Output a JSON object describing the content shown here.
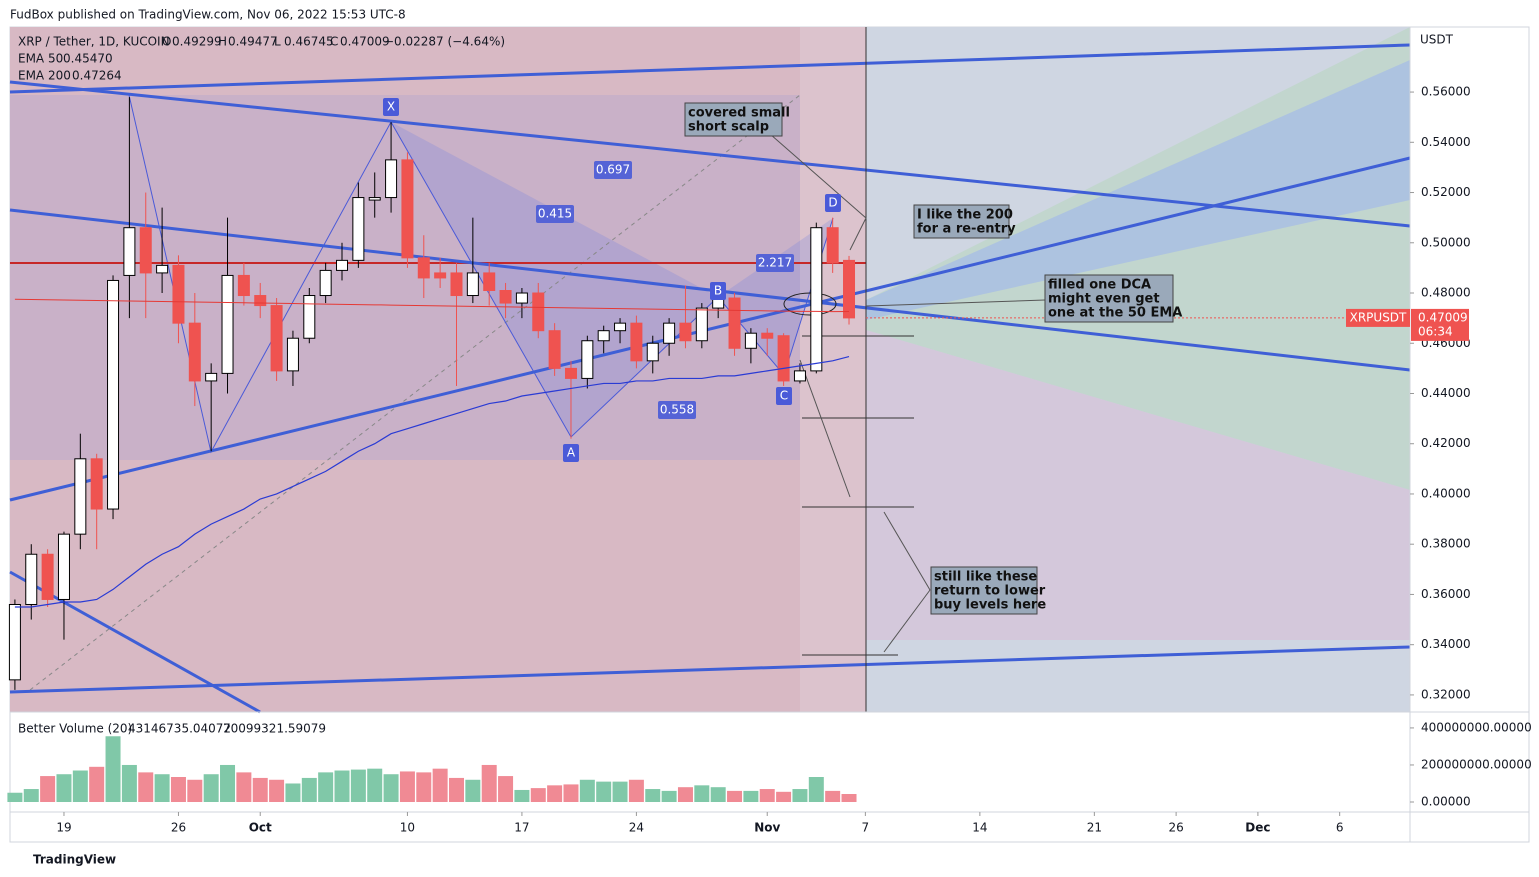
{
  "header": {
    "publisher": "FudBox published on TradingView.com, Nov 06, 2022 15:53 UTC-8",
    "footer": "TradingView"
  },
  "chart_data": {
    "type": "candlestick",
    "title": "XRP / Tether, 1D, KUCOIN",
    "ohlc_labels": [
      "O",
      "H",
      "L",
      "C"
    ],
    "change": "−0.02287 (−4.64%)",
    "currency": "USDT",
    "symbol": "XRPUSDT",
    "countdown": "06:34",
    "x": [
      0,
      1,
      2,
      3,
      4,
      5,
      6,
      7,
      8,
      9,
      10,
      11,
      12,
      13,
      14,
      15,
      16,
      17,
      18,
      19,
      20,
      21,
      22,
      23,
      24,
      25,
      26,
      27,
      28,
      29,
      30,
      31,
      32,
      33,
      34,
      35,
      36,
      37,
      38,
      39,
      40,
      41,
      42,
      43,
      44,
      45,
      46,
      47,
      48,
      49,
      50,
      51
    ],
    "open": [
      0.326,
      0.356,
      0.376,
      0.358,
      0.384,
      0.414,
      0.394,
      0.487,
      0.506,
      0.488,
      0.491,
      0.468,
      0.445,
      0.448,
      0.487,
      0.479,
      0.475,
      0.449,
      0.462,
      0.479,
      0.489,
      0.493,
      0.517,
      0.518,
      0.533,
      0.494,
      0.488,
      0.488,
      0.479,
      0.488,
      0.481,
      0.476,
      0.48,
      0.465,
      0.45,
      0.446,
      0.461,
      0.465,
      0.468,
      0.453,
      0.46,
      0.468,
      0.461,
      0.474,
      0.478,
      0.458,
      0.464,
      0.463,
      0.445,
      0.449,
      0.506,
      0.49299
    ],
    "high": [
      0.358,
      0.38,
      0.378,
      0.385,
      0.424,
      0.416,
      0.487,
      0.558,
      0.52,
      0.514,
      0.495,
      0.48,
      0.452,
      0.51,
      0.492,
      0.484,
      0.478,
      0.465,
      0.482,
      0.492,
      0.5,
      0.524,
      0.528,
      0.548,
      0.536,
      0.503,
      0.494,
      0.492,
      0.51,
      0.492,
      0.484,
      0.482,
      0.484,
      0.468,
      0.453,
      0.463,
      0.467,
      0.47,
      0.471,
      0.463,
      0.47,
      0.483,
      0.476,
      0.483,
      0.48,
      0.466,
      0.466,
      0.464,
      0.452,
      0.508,
      0.51,
      0.49477
    ],
    "low": [
      0.322,
      0.35,
      0.355,
      0.342,
      0.378,
      0.378,
      0.39,
      0.47,
      0.47,
      0.48,
      0.46,
      0.435,
      0.417,
      0.44,
      0.475,
      0.47,
      0.445,
      0.443,
      0.46,
      0.476,
      0.485,
      0.49,
      0.51,
      0.512,
      0.49,
      0.478,
      0.482,
      0.443,
      0.476,
      0.475,
      0.47,
      0.47,
      0.462,
      0.447,
      0.422,
      0.442,
      0.456,
      0.46,
      0.45,
      0.448,
      0.455,
      0.458,
      0.458,
      0.47,
      0.455,
      0.452,
      0.455,
      0.443,
      0.444,
      0.448,
      0.488,
      0.46745
    ],
    "close": [
      0.356,
      0.376,
      0.358,
      0.384,
      0.414,
      0.394,
      0.485,
      0.506,
      0.488,
      0.491,
      0.468,
      0.445,
      0.448,
      0.487,
      0.479,
      0.475,
      0.449,
      0.462,
      0.479,
      0.489,
      0.493,
      0.518,
      0.518,
      0.533,
      0.494,
      0.486,
      0.486,
      0.479,
      0.488,
      0.481,
      0.476,
      0.48,
      0.465,
      0.45,
      0.446,
      0.461,
      0.465,
      0.468,
      0.453,
      0.46,
      0.468,
      0.461,
      0.474,
      0.478,
      0.458,
      0.464,
      0.462,
      0.445,
      0.449,
      0.506,
      0.492,
      0.47009
    ],
    "up_color": "#ffffff",
    "down_color": "#ef5350",
    "outline_color": "#000000",
    "xlim": [
      -0.3,
      85.3
    ],
    "xticks": [
      {
        "value": 3,
        "label": "19"
      },
      {
        "value": 10,
        "label": "26"
      },
      {
        "value": 15,
        "label": "Oct"
      },
      {
        "value": 24,
        "label": "10"
      },
      {
        "value": 31,
        "label": "17"
      },
      {
        "value": 38,
        "label": "24"
      },
      {
        "value": 46,
        "label": "Nov"
      },
      {
        "value": 52,
        "label": "7"
      },
      {
        "value": 59,
        "label": "14"
      },
      {
        "value": 66,
        "label": "21"
      },
      {
        "value": 71,
        "label": "26"
      },
      {
        "value": 76,
        "label": "Dec"
      },
      {
        "value": 81,
        "label": "6"
      }
    ],
    "ylim": [
      0.3132,
      0.5859
    ],
    "yticks": [
      {
        "value": 0.32,
        "label": "0.32000"
      },
      {
        "value": 0.34,
        "label": "0.34000"
      },
      {
        "value": 0.36,
        "label": "0.36000"
      },
      {
        "value": 0.38,
        "label": "0.38000"
      },
      {
        "value": 0.4,
        "label": "0.40000"
      },
      {
        "value": 0.42,
        "label": "0.42000"
      },
      {
        "value": 0.44,
        "label": "0.44000"
      },
      {
        "value": 0.46,
        "label": "0.46000"
      },
      {
        "value": 0.48,
        "label": "0.48000"
      },
      {
        "value": 0.5,
        "label": "0.50000"
      },
      {
        "value": 0.52,
        "label": "0.52000"
      },
      {
        "value": 0.54,
        "label": "0.54000"
      },
      {
        "value": 0.56,
        "label": "0.56000"
      }
    ],
    "series": [
      {
        "name": "EMA 50",
        "color": "#2a3bd4",
        "value_label": "0.45470",
        "values": [
          0.355,
          0.355,
          0.356,
          0.357,
          0.357,
          0.358,
          0.362,
          0.367,
          0.372,
          0.376,
          0.379,
          0.384,
          0.388,
          0.391,
          0.394,
          0.398,
          0.4,
          0.403,
          0.406,
          0.409,
          0.413,
          0.417,
          0.42,
          0.424,
          0.426,
          0.428,
          0.43,
          0.432,
          0.434,
          0.436,
          0.437,
          0.439,
          0.44,
          0.441,
          0.442,
          0.443,
          0.444,
          0.444,
          0.445,
          0.445,
          0.446,
          0.446,
          0.446,
          0.447,
          0.447,
          0.448,
          0.449,
          0.45,
          0.451,
          0.452,
          0.453,
          0.4547
        ]
      },
      {
        "name": "EMA 200",
        "color": "#e53935",
        "value_label": "0.47264",
        "values": [
          0.4775,
          0.4774,
          0.4773,
          0.4772,
          0.4771,
          0.477,
          0.4769,
          0.4768,
          0.4767,
          0.4766,
          0.4765,
          0.4764,
          0.4763,
          0.4762,
          0.4761,
          0.476,
          0.4759,
          0.4758,
          0.4757,
          0.4756,
          0.4755,
          0.4754,
          0.4753,
          0.4752,
          0.4751,
          0.475,
          0.4749,
          0.4748,
          0.4747,
          0.4746,
          0.4745,
          0.4744,
          0.4743,
          0.4742,
          0.4741,
          0.474,
          0.4739,
          0.4738,
          0.4737,
          0.4736,
          0.4735,
          0.4734,
          0.4733,
          0.4732,
          0.4731,
          0.473,
          0.4729,
          0.4728,
          0.4727,
          0.4727,
          0.4726,
          0.47264
        ]
      }
    ],
    "volume": {
      "name": "Better Volume (20)",
      "up_color": "#80c8a8",
      "down_color": "#f08a94",
      "ma_last": 70099321.59079,
      "values": [
        50000000,
        70000000,
        140000000,
        150000000,
        170000000,
        190000000,
        355000000,
        200000000,
        160000000,
        150000000,
        135000000,
        120000000,
        150000000,
        200000000,
        160000000,
        130000000,
        120000000,
        100000000,
        130000000,
        160000000,
        170000000,
        175000000,
        180000000,
        150000000,
        165000000,
        160000000,
        180000000,
        130000000,
        120000000,
        200000000,
        140000000,
        65000000,
        75000000,
        90000000,
        95000000,
        120000000,
        110000000,
        110000000,
        120000000,
        70000000,
        60000000,
        80000000,
        90000000,
        80000000,
        60000000,
        60000000,
        70000000,
        55000000,
        70000000,
        135000000,
        60000000,
        43146735.04072
      ],
      "ylim": [
        -54000000,
        486000000
      ],
      "yticks": [
        {
          "value": 0,
          "label": "0.00000"
        },
        {
          "value": 200000000,
          "label": "200000000.00000"
        },
        {
          "value": 400000000,
          "label": "400000000.00000"
        }
      ]
    },
    "annotations": [
      {
        "lines": [
          "covered small",
          "short scalp"
        ]
      },
      {
        "lines": [
          "I like the 200",
          "for a re-entry"
        ]
      },
      {
        "lines": [
          "filled one DCA",
          "might even get",
          "one at the 50 EMA"
        ]
      },
      {
        "lines": [
          "still like these",
          "return to lower",
          "buy levels here"
        ]
      }
    ],
    "pattern_labels": [
      "X",
      "A",
      "B",
      "C",
      "D"
    ],
    "ratio_labels": [
      0.697,
      0.415,
      2.217,
      0.558
    ]
  }
}
